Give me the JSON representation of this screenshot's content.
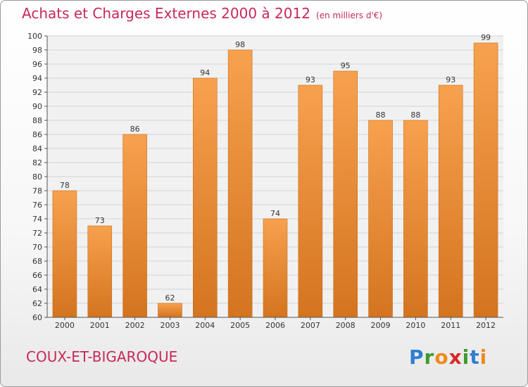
{
  "title": "Achats et Charges Externes 2000 à 2012",
  "unit": "(en milliers d'€)",
  "town": "COUX-ET-BIGAROQUE",
  "logo": {
    "letters": [
      "P",
      "r",
      "o",
      "x",
      "i",
      "t",
      "i"
    ],
    "colors": [
      "#2f7fd0",
      "#3c9a2f",
      "#f08a1c",
      "#d72a2a",
      "#3c9a2f",
      "#2f7fd0",
      "#f08a1c"
    ]
  },
  "colors": {
    "bar_top": "#f7a14e",
    "bar_bottom": "#d4741f",
    "accent": "#c8285a"
  },
  "chart_data": {
    "type": "bar",
    "categories": [
      "2000",
      "2001",
      "2002",
      "2003",
      "2004",
      "2005",
      "2006",
      "2007",
      "2008",
      "2009",
      "2010",
      "2011",
      "2012"
    ],
    "values": [
      78,
      73,
      86,
      62,
      94,
      98,
      74,
      93,
      95,
      88,
      88,
      93,
      99
    ],
    "ylim": [
      60,
      100
    ],
    "ytick_step": 2,
    "grid": true,
    "xlabel": "",
    "ylabel": ""
  }
}
